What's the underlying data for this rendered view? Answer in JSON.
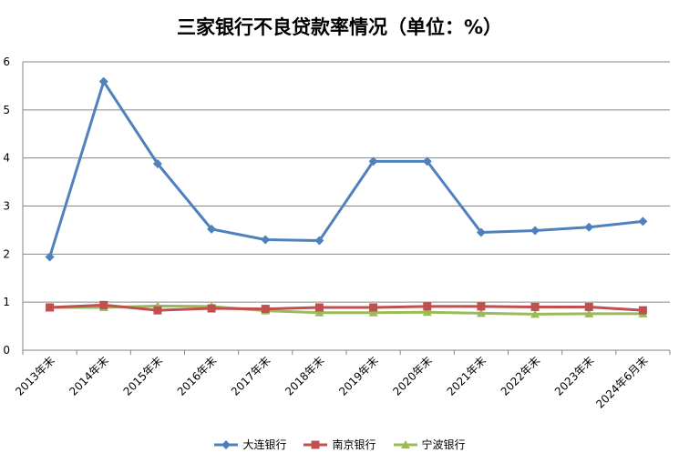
{
  "chart_data": {
    "type": "line",
    "title": "三家银行不良贷款率情况（单位：%）",
    "categories": [
      "2013年末",
      "2014年末",
      "2015年末",
      "2016年末",
      "2017年末",
      "2018年末",
      "2019年末",
      "2020年末",
      "2021年末",
      "2022年末",
      "2023年末",
      "2024年6月末"
    ],
    "ylim": [
      0,
      6
    ],
    "yticks": [
      0,
      1,
      2,
      3,
      4,
      5,
      6
    ],
    "grid": true,
    "legend_position": "bottom",
    "series": [
      {
        "name": "大连银行",
        "color": "#4F81BD",
        "marker": "diamond",
        "values": [
          1.94,
          5.59,
          3.88,
          2.52,
          2.3,
          2.28,
          3.93,
          3.93,
          2.45,
          2.49,
          2.56,
          2.68
        ]
      },
      {
        "name": "南京银行",
        "color": "#C0504D",
        "marker": "square",
        "values": [
          0.89,
          0.94,
          0.83,
          0.87,
          0.86,
          0.89,
          0.89,
          0.91,
          0.91,
          0.9,
          0.9,
          0.83
        ]
      },
      {
        "name": "宁波银行",
        "color": "#9BBB59",
        "marker": "triangle",
        "values": [
          0.89,
          0.89,
          0.92,
          0.91,
          0.82,
          0.78,
          0.78,
          0.79,
          0.77,
          0.75,
          0.76,
          0.76
        ]
      }
    ]
  }
}
